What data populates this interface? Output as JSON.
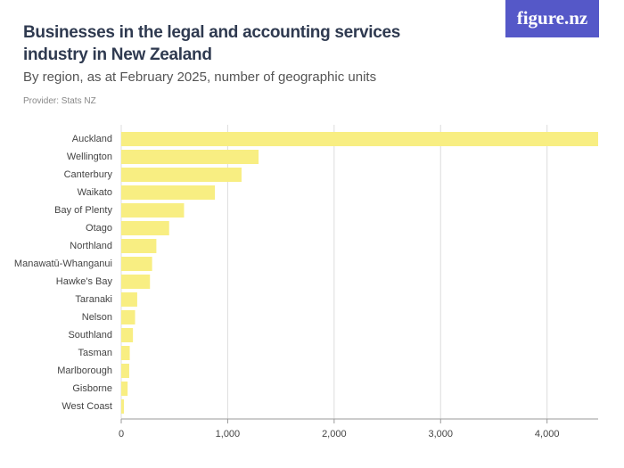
{
  "logo": "figure.nz",
  "chart_data": {
    "type": "bar",
    "orientation": "horizontal",
    "title": "Businesses in the legal and accounting services industry in New Zealand",
    "subtitle": "By region, as at February 2025, number of geographic units",
    "source": "Provider: Stats NZ",
    "categories": [
      "Auckland",
      "Wellington",
      "Canterbury",
      "Waikato",
      "Bay of Plenty",
      "Otago",
      "Northland",
      "Manawatū-Whanganui",
      "Hawke's Bay",
      "Taranaki",
      "Nelson",
      "Southland",
      "Tasman",
      "Marlborough",
      "Gisborne",
      "West Coast"
    ],
    "values": [
      4480,
      1290,
      1130,
      880,
      590,
      450,
      330,
      290,
      270,
      150,
      130,
      110,
      80,
      75,
      60,
      25
    ],
    "color": "#f8ee82",
    "xlim": [
      0,
      4480
    ],
    "xticks": [
      0,
      {
        "value": 1000,
        "label": "1,000"
      },
      {
        "value": 2000,
        "label": "2,000"
      },
      {
        "value": 3000,
        "label": "3,000"
      },
      {
        "value": 4000,
        "label": "4,000"
      }
    ],
    "grid": true
  }
}
